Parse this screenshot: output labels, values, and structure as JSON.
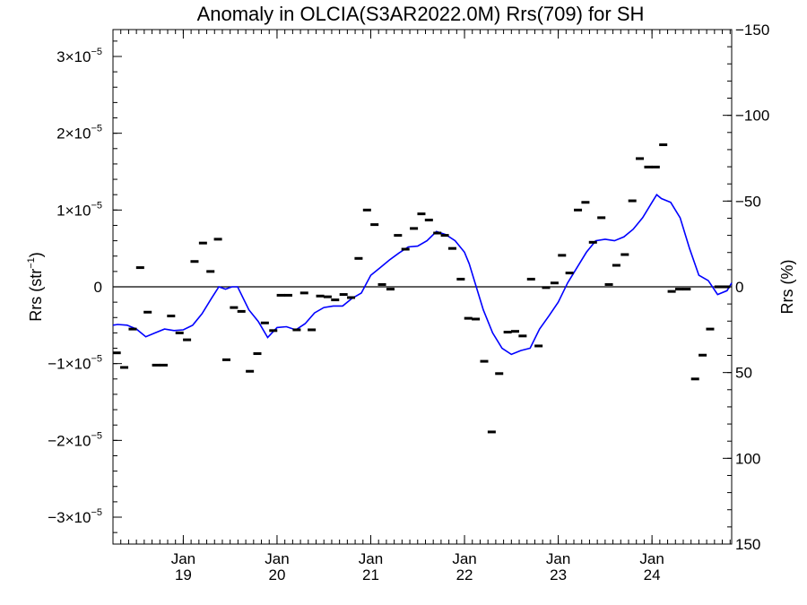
{
  "chart_data": {
    "type": "scatter",
    "title": "Anomaly in OLCIA(S3AR2022.0M) Rrs(709) for SH",
    "ylabel_left": "Rrs (str",
    "ylabel_left_sup": "−1",
    "ylabel_left_close": ")",
    "ylabel_right": "Rrs (%)",
    "ylim": [
      -3.35e-05,
      3.35e-05
    ],
    "xlim": [
      2018.25,
      2024.85
    ],
    "left_ticks": [
      {
        "value": 3e-05,
        "mant": "3×10",
        "exp": "−5"
      },
      {
        "value": 2e-05,
        "mant": "2×10",
        "exp": "−5"
      },
      {
        "value": 1e-05,
        "mant": "1×10",
        "exp": "−5"
      },
      {
        "value": 0,
        "mant": "0",
        "exp": ""
      },
      {
        "value": -1e-05,
        "mant": "−1×10",
        "exp": "−5"
      },
      {
        "value": -2e-05,
        "mant": "−2×10",
        "exp": "−5"
      },
      {
        "value": -3e-05,
        "mant": "−3×10",
        "exp": "−5"
      }
    ],
    "right_axis": {
      "ylim": [
        150,
        -150
      ],
      "inverted": true
    },
    "right_ticks": [
      {
        "value": -150,
        "label": "−150"
      },
      {
        "value": -100,
        "label": "−100"
      },
      {
        "value": -50,
        "label": "−50"
      },
      {
        "value": 0,
        "label": "0"
      },
      {
        "value": 50,
        "label": "50"
      },
      {
        "value": 100,
        "label": "100"
      },
      {
        "value": 150,
        "label": "150"
      }
    ],
    "x_ticks": [
      {
        "value": 2019.0,
        "month": "Jan",
        "year": "19"
      },
      {
        "value": 2020.0,
        "month": "Jan",
        "year": "20"
      },
      {
        "value": 2021.0,
        "month": "Jan",
        "year": "21"
      },
      {
        "value": 2022.0,
        "month": "Jan",
        "year": "22"
      },
      {
        "value": 2023.0,
        "month": "Jan",
        "year": "23"
      },
      {
        "value": 2024.0,
        "month": "Jan",
        "year": "24"
      }
    ],
    "zero_line": true,
    "colors": {
      "points": "#000000",
      "smooth_line": "#0000ff",
      "axes": "#000000"
    },
    "series": [
      {
        "kind": "monthly_points",
        "x": [
          2018.29,
          2018.37,
          2018.46,
          2018.54,
          2018.62,
          2018.71,
          2018.79,
          2018.87,
          2018.96,
          2019.04,
          2019.12,
          2019.21,
          2019.29,
          2019.37,
          2019.46,
          2019.54,
          2019.62,
          2019.71,
          2019.79,
          2019.87,
          2019.96,
          2020.04,
          2020.12,
          2020.21,
          2020.29,
          2020.37,
          2020.46,
          2020.54,
          2020.62,
          2020.71,
          2020.79,
          2020.87,
          2020.96,
          2021.04,
          2021.12,
          2021.21,
          2021.29,
          2021.37,
          2021.46,
          2021.54,
          2021.62,
          2021.71,
          2021.79,
          2021.87,
          2021.96,
          2022.04,
          2022.12,
          2022.21,
          2022.29,
          2022.37,
          2022.46,
          2022.54,
          2022.62,
          2022.71,
          2022.79,
          2022.87,
          2022.96,
          2023.04,
          2023.12,
          2023.21,
          2023.29,
          2023.37,
          2023.46,
          2023.54,
          2023.62,
          2023.71,
          2023.79,
          2023.87,
          2023.96,
          2024.04,
          2024.12,
          2024.21,
          2024.29,
          2024.37,
          2024.46,
          2024.54,
          2024.62,
          2024.71,
          2024.79
        ],
        "y": [
          -8.6e-06,
          -1.05e-05,
          -5.5e-06,
          2.5e-06,
          -3.3e-06,
          -1.02e-05,
          -1.02e-05,
          -3.8e-06,
          -6e-06,
          -6.9e-06,
          3.3e-06,
          5.7e-06,
          2e-06,
          6.2e-06,
          -9.5e-06,
          -2.7e-06,
          -3.2e-06,
          -1.1e-05,
          -8.7e-06,
          -4.7e-06,
          -5.7e-06,
          -1.1e-06,
          -1.1e-06,
          -5.6e-06,
          -8e-07,
          -5.6e-06,
          -1.2e-06,
          -1.3e-06,
          -1.7e-06,
          -1e-06,
          -1.4e-06,
          3.7e-06,
          1e-05,
          8.1e-06,
          3e-07,
          -3e-07,
          6.7e-06,
          4.9e-06,
          7.6e-06,
          9.5e-06,
          8.7e-06,
          7e-06,
          6.7e-06,
          5e-06,
          1e-06,
          -4.1e-06,
          -4.2e-06,
          -9.7e-06,
          -1.89e-05,
          -1.13e-05,
          -5.9e-06,
          -5.8e-06,
          -6.4e-06,
          1e-06,
          -7.7e-06,
          -1e-07,
          5e-07,
          4.1e-06,
          1.8e-06,
          1e-05,
          1.1e-05,
          5.8e-06,
          9e-06,
          3e-07,
          2.8e-06,
          4.2e-06,
          1.12e-05,
          1.67e-05,
          1.56e-05,
          1.56e-05,
          1.85e-05,
          -6e-07,
          -3e-07,
          -3e-07,
          -1.2e-05,
          -8.9e-06,
          -5.5e-06,
          0.0,
          0.0
        ]
      },
      {
        "kind": "smoothed_line",
        "x": [
          2018.25,
          2018.3,
          2018.4,
          2018.5,
          2018.6,
          2018.7,
          2018.8,
          2018.9,
          2019.0,
          2019.1,
          2019.2,
          2019.3,
          2019.38,
          2019.45,
          2019.52,
          2019.58,
          2019.7,
          2019.8,
          2019.9,
          2020.0,
          2020.1,
          2020.2,
          2020.3,
          2020.4,
          2020.5,
          2020.6,
          2020.7,
          2020.8,
          2020.9,
          2021.0,
          2021.1,
          2021.2,
          2021.3,
          2021.4,
          2021.5,
          2021.6,
          2021.7,
          2021.8,
          2021.9,
          2022.0,
          2022.05,
          2022.1,
          2022.2,
          2022.3,
          2022.4,
          2022.5,
          2022.6,
          2022.7,
          2022.8,
          2022.9,
          2023.0,
          2023.1,
          2023.2,
          2023.3,
          2023.4,
          2023.5,
          2023.6,
          2023.7,
          2023.8,
          2023.9,
          2024.0,
          2024.05,
          2024.1,
          2024.2,
          2024.3,
          2024.4,
          2024.5,
          2024.6,
          2024.7,
          2024.8,
          2024.85
        ],
        "y": [
          -5e-06,
          -4.9e-06,
          -5e-06,
          -5.5e-06,
          -6.5e-06,
          -6e-06,
          -5.5e-06,
          -5.7e-06,
          -5.6e-06,
          -5e-06,
          -3.5e-06,
          -1.5e-06,
          0.0,
          -3e-07,
          0.0,
          0.0,
          -3e-06,
          -4.5e-06,
          -6.6e-06,
          -5.3e-06,
          -5.2e-06,
          -5.6e-06,
          -4.8e-06,
          -3.4e-06,
          -2.7e-06,
          -2.5e-06,
          -2.5e-06,
          -1.5e-06,
          -8e-07,
          1.5e-06,
          2.5e-06,
          3.5e-06,
          4.4e-06,
          5.2e-06,
          5.3e-06,
          6e-06,
          7.2e-06,
          6.8e-06,
          6e-06,
          4.5e-06,
          3e-06,
          1e-06,
          -3e-06,
          -6e-06,
          -8e-06,
          -8.8e-06,
          -8.3e-06,
          -8e-06,
          -5.5e-06,
          -3.8e-06,
          -2e-06,
          5e-07,
          2.5e-06,
          4.5e-06,
          6e-06,
          6.2e-06,
          6e-06,
          6.5e-06,
          7.5e-06,
          9e-06,
          1.1e-05,
          1.2e-05,
          1.15e-05,
          1.1e-05,
          9e-06,
          5e-06,
          1.5e-06,
          8e-07,
          -1e-06,
          -5e-07,
          5e-07
        ]
      }
    ]
  }
}
